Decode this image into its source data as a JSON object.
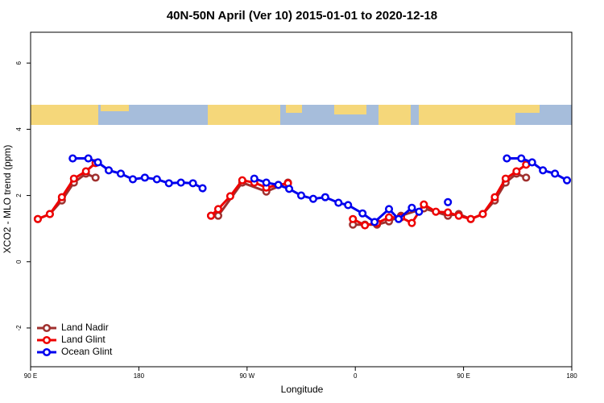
{
  "chart_data": {
    "type": "line",
    "title": "40N-50N April (Ver 10)   2015-01-01 to 2020-12-18",
    "x_label": "Longitude",
    "y_label": "XCO2 - MLO trend (ppm)",
    "xlim": [
      90,
      540
    ],
    "ylim": [
      -3.17,
      6.93
    ],
    "xticks": [
      {
        "value": 90,
        "label": "90 E"
      },
      180,
      {
        "value": 270,
        "label": "90 W"
      },
      {
        "value": 360,
        "label": "0"
      },
      {
        "value": 450,
        "label": "90 E"
      },
      {
        "value": 540,
        "label": "180"
      }
    ],
    "yticks": [
      -2,
      0,
      2,
      4,
      6
    ],
    "legend": "bottom-left",
    "series": [
      {
        "name": "Land Nadir",
        "color": "#a0302e",
        "x": [
          96,
          106,
          116,
          126,
          136,
          144,
          190,
          240,
          246,
          266,
          286,
          304,
          330,
          358,
          368,
          378,
          388,
          398,
          417,
          437,
          446,
          456,
          466,
          476,
          485,
          494,
          502
        ],
        "values": [
          1.29,
          1.44,
          1.85,
          2.39,
          2.66,
          2.54,
          null,
          1.39,
          1.39,
          2.39,
          2.12,
          2.39,
          null,
          1.12,
          1.12,
          1.12,
          1.22,
          1.39,
          1.61,
          1.39,
          1.44,
          1.29,
          1.44,
          1.85,
          2.39,
          2.66,
          2.54
        ]
      },
      {
        "name": "Land Glint",
        "color": "#ee0000",
        "x": [
          96,
          106,
          116,
          126,
          136,
          144,
          190,
          240,
          246,
          256,
          266,
          276,
          286,
          296,
          304,
          330,
          358,
          368,
          378,
          388,
          398,
          407,
          417,
          427,
          437,
          446,
          456,
          466,
          476,
          485,
          494,
          502
        ],
        "values": [
          1.29,
          1.44,
          1.95,
          2.51,
          2.73,
          2.98,
          null,
          1.39,
          1.59,
          1.98,
          2.46,
          2.39,
          2.24,
          2.32,
          2.37,
          null,
          1.29,
          1.1,
          1.17,
          1.34,
          1.34,
          1.17,
          1.73,
          1.51,
          1.49,
          1.39,
          1.29,
          1.44,
          1.95,
          2.51,
          2.73,
          2.93
        ]
      },
      {
        "name": "Ocean Glint",
        "color": "#0000ee",
        "x": [
          125,
          138,
          146,
          155,
          165,
          175,
          185,
          195,
          205,
          215,
          225,
          233,
          250,
          276,
          286,
          296,
          305,
          315,
          325,
          335,
          346,
          354,
          366,
          376,
          388,
          396,
          407,
          413,
          425,
          437,
          460,
          486,
          498,
          507,
          516,
          526,
          536
        ],
        "values": [
          3.12,
          3.12,
          3.0,
          2.76,
          2.66,
          2.49,
          2.54,
          2.49,
          2.37,
          2.39,
          2.37,
          2.22,
          null,
          2.51,
          2.39,
          2.32,
          2.2,
          2.0,
          1.9,
          1.95,
          1.78,
          1.71,
          1.46,
          1.2,
          1.59,
          1.29,
          1.63,
          1.51,
          null,
          1.8,
          null,
          3.12,
          3.12,
          3.0,
          2.76,
          2.66,
          2.46
        ]
      }
    ]
  }
}
